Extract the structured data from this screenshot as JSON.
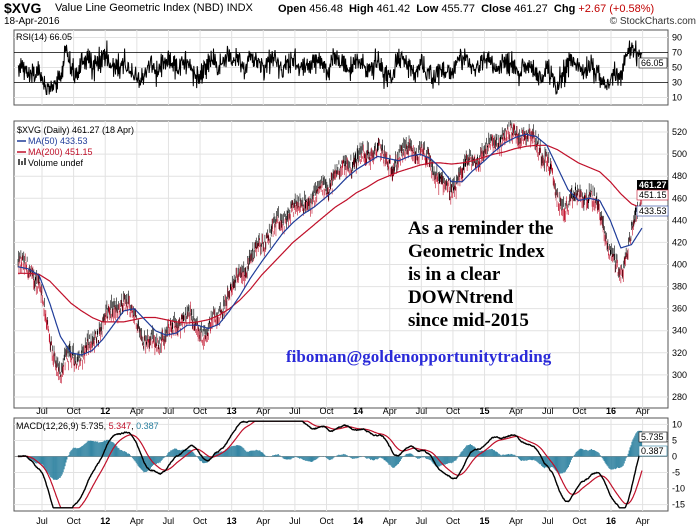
{
  "header": {
    "symbol": "$XVG",
    "name": "Value Line Geometric Index (NBD)",
    "exchange": "INDX",
    "date": "18-Apr-2016",
    "open_label": "Open",
    "open": "456.48",
    "high_label": "High",
    "high": "461.42",
    "low_label": "Low",
    "low": "455.77",
    "close_label": "Close",
    "close": "461.27",
    "chg_label": "Chg",
    "chg": "+2.67 (+0.58%)",
    "brand": "© StockCharts.com"
  },
  "rsi_panel": {
    "legend": "RSI(14) 66.05",
    "ticks": [
      "90",
      "70",
      "50",
      "30",
      "10"
    ],
    "badge": "66.05",
    "color": "#000000"
  },
  "price_panel": {
    "legend_main": "$XVG (Daily) 461.27 (18 Apr)",
    "legend_ma50": "MA(50) 433.53",
    "legend_ma200": "MA(200) 451.15",
    "legend_vol": "Volume undef",
    "ticks": [
      "520",
      "500",
      "480",
      "460",
      "440",
      "420",
      "400",
      "380",
      "360",
      "340",
      "320",
      "300",
      "280"
    ],
    "badge_close": "461.27",
    "badge_ma200": "451.15",
    "badge_ma50": "433.53",
    "annotation": [
      "As a reminder the",
      "Geometric Index",
      "is in a clear",
      "DOWNtrend",
      "since mid-2015"
    ],
    "email": "fiboman@goldenopportunitytrading",
    "colors": {
      "ma50": "#1f3c99",
      "ma200": "#c0102a",
      "email": "#2a2ad8"
    }
  },
  "macd_panel": {
    "legend_prefix": "MACD(12,26,9)",
    "macd_val": "5.735",
    "signal_val": "5.347",
    "hist_val": "0.387",
    "ticks": [
      "10",
      "5",
      "0",
      "-5",
      "-10",
      "-15"
    ],
    "badge_macd": "5.735",
    "badge_hist": "0.387",
    "colors": {
      "macd": "#000000",
      "signal": "#c0102a",
      "hist": "#2a7f9e"
    }
  },
  "x_axis": [
    "Jul",
    "Oct",
    "12",
    "Apr",
    "Jul",
    "Oct",
    "13",
    "Apr",
    "Jul",
    "Oct",
    "14",
    "Apr",
    "Jul",
    "Oct",
    "15",
    "Apr",
    "Jul",
    "Oct",
    "16",
    "Apr"
  ],
  "chart_data": {
    "type": "line",
    "title": "$XVG Value Line Geometric Index (NBD) INDX",
    "x": [
      "2011-05",
      "2011-06",
      "2011-07",
      "2011-08",
      "2011-09",
      "2011-10",
      "2011-11",
      "2011-12",
      "2012-01",
      "2012-02",
      "2012-03",
      "2012-04",
      "2012-05",
      "2012-06",
      "2012-07",
      "2012-08",
      "2012-09",
      "2012-10",
      "2012-11",
      "2012-12",
      "2013-01",
      "2013-02",
      "2013-03",
      "2013-04",
      "2013-05",
      "2013-06",
      "2013-07",
      "2013-08",
      "2013-09",
      "2013-10",
      "2013-11",
      "2013-12",
      "2014-01",
      "2014-02",
      "2014-03",
      "2014-04",
      "2014-05",
      "2014-06",
      "2014-07",
      "2014-08",
      "2014-09",
      "2014-10",
      "2014-11",
      "2014-12",
      "2015-01",
      "2015-02",
      "2015-03",
      "2015-04",
      "2015-05",
      "2015-06",
      "2015-07",
      "2015-08",
      "2015-09",
      "2015-10",
      "2015-11",
      "2015-12",
      "2016-01",
      "2016-02",
      "2016-03",
      "2016-04"
    ],
    "series": [
      {
        "name": "$XVG",
        "values": [
          400,
          395,
          385,
          330,
          300,
          320,
          315,
          330,
          345,
          360,
          365,
          355,
          330,
          330,
          335,
          345,
          355,
          340,
          340,
          355,
          375,
          390,
          405,
          420,
          430,
          440,
          450,
          455,
          460,
          470,
          480,
          490,
          495,
          500,
          505,
          490,
          495,
          505,
          500,
          490,
          475,
          465,
          485,
          495,
          500,
          510,
          515,
          520,
          518,
          512,
          495,
          460,
          450,
          465,
          460,
          450,
          410,
          390,
          430,
          461
        ]
      },
      {
        "name": "MA(50) 433.53",
        "values": [
          398,
          396,
          390,
          365,
          335,
          320,
          318,
          322,
          332,
          345,
          358,
          360,
          350,
          340,
          336,
          338,
          345,
          345,
          342,
          346,
          358,
          372,
          388,
          402,
          415,
          428,
          438,
          446,
          452,
          460,
          468,
          478,
          486,
          492,
          498,
          496,
          494,
          498,
          500,
          496,
          487,
          475,
          475,
          485,
          493,
          502,
          510,
          515,
          518,
          516,
          508,
          488,
          468,
          458,
          460,
          458,
          440,
          415,
          418,
          433
        ]
      },
      {
        "name": "MA(200) 451.15",
        "values": [
          392,
          392,
          391,
          385,
          375,
          365,
          358,
          352,
          348,
          348,
          348,
          350,
          352,
          352,
          350,
          348,
          347,
          348,
          350,
          354,
          360,
          368,
          378,
          390,
          400,
          410,
          420,
          428,
          436,
          444,
          452,
          458,
          465,
          470,
          476,
          480,
          484,
          487,
          490,
          492,
          492,
          491,
          492,
          494,
          497,
          500,
          502,
          505,
          507,
          508,
          508,
          504,
          498,
          492,
          488,
          484,
          475,
          464,
          455,
          451
        ]
      }
    ],
    "ylim": [
      270,
      530
    ],
    "rsi": {
      "name": "RSI(14)",
      "last": 66.05,
      "ylim": [
        0,
        100
      ],
      "levels": [
        70,
        30
      ]
    },
    "macd": {
      "name": "MACD(12,26,9)",
      "macd": 5.735,
      "signal": 5.347,
      "histogram": 0.387,
      "ylim": [
        -17,
        12
      ]
    }
  }
}
